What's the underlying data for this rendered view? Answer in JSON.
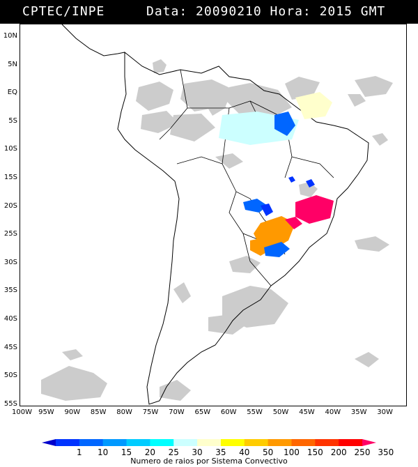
{
  "header": {
    "agency": "CPTEC/INPE",
    "info": "Data: 20090210 Hora: 2015 GMT"
  },
  "lat_labels": [
    "10N",
    "5N",
    "EQ",
    "5S",
    "10S",
    "15S",
    "20S",
    "25S",
    "30S",
    "35S",
    "40S",
    "45S",
    "50S",
    "55S"
  ],
  "lon_labels": [
    "100W",
    "95W",
    "90W",
    "85W",
    "80W",
    "75W",
    "70W",
    "65W",
    "60W",
    "55W",
    "50W",
    "45W",
    "40W",
    "35W",
    "30W"
  ],
  "colorbar": {
    "caption": "Numero de raios por Sistema Convectivo",
    "ticks": [
      "1",
      "10",
      "15",
      "20",
      "25",
      "30",
      "35",
      "40",
      "50",
      "100",
      "150",
      "200",
      "250",
      "350"
    ],
    "colors": [
      "#0000cc",
      "#0033ff",
      "#0066ff",
      "#0099ff",
      "#00ccff",
      "#00ffff",
      "#ccffff",
      "#ffffcc",
      "#ffff00",
      "#ffcc00",
      "#ff9900",
      "#ff6600",
      "#ff3300",
      "#ff0000",
      "#ff0066"
    ]
  },
  "map": {
    "clouds_color": "#cccccc",
    "land_outline": "#000000"
  }
}
